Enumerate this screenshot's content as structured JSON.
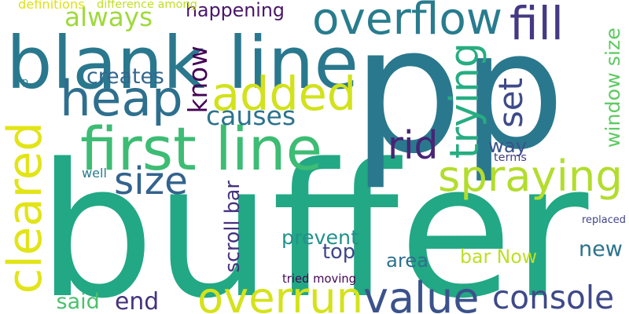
{
  "words": [
    {
      "text": "buffer",
      "color": "#22a884",
      "orientation": "horizontal"
    },
    {
      "text": "p",
      "color": "#2a788e",
      "orientation": "horizontal"
    },
    {
      "text": "p",
      "color": "#2a788e",
      "orientation": "horizontal"
    },
    {
      "text": "blank line",
      "color": "#2a788e",
      "orientation": "horizontal"
    },
    {
      "text": "overflow",
      "color": "#287c8e",
      "orientation": "horizontal"
    },
    {
      "text": "heap",
      "color": "#2e6f8e",
      "orientation": "horizontal"
    },
    {
      "text": "added",
      "color": "#d2e21b",
      "orientation": "horizontal"
    },
    {
      "text": "first line",
      "color": "#3dbc74",
      "orientation": "horizontal"
    },
    {
      "text": "cleared",
      "color": "#e2e418",
      "orientation": "vertical"
    },
    {
      "text": "spraying",
      "color": "#b2dd2d",
      "orientation": "horizontal"
    },
    {
      "text": "overrun",
      "color": "#d5e21a",
      "orientation": "horizontal"
    },
    {
      "text": "value",
      "color": "#3b528b",
      "orientation": "horizontal"
    },
    {
      "text": "console",
      "color": "#3e4989",
      "orientation": "horizontal"
    },
    {
      "text": "fill",
      "color": "#443983",
      "orientation": "horizontal"
    },
    {
      "text": "trying",
      "color": "#26ad81",
      "orientation": "vertical"
    },
    {
      "text": "set",
      "color": "#3e4a89",
      "orientation": "vertical"
    },
    {
      "text": "rid",
      "color": "#482475",
      "orientation": "horizontal"
    },
    {
      "text": "size",
      "color": "#33638d",
      "orientation": "horizontal"
    },
    {
      "text": "always",
      "color": "#9fda3a",
      "orientation": "horizontal"
    },
    {
      "text": "know",
      "color": "#440154",
      "orientation": "vertical"
    },
    {
      "text": "causes",
      "color": "#2c738e",
      "orientation": "horizontal"
    },
    {
      "text": "creates",
      "color": "#31688e",
      "orientation": "horizontal"
    },
    {
      "text": "happening",
      "color": "#481668",
      "orientation": "horizontal"
    },
    {
      "text": "way",
      "color": "#3b528b",
      "orientation": "horizontal"
    },
    {
      "text": "window size",
      "color": "#5ec962",
      "orientation": "vertical"
    },
    {
      "text": "prevent",
      "color": "#21918c",
      "orientation": "horizontal"
    },
    {
      "text": "scroll bar",
      "color": "#46327e",
      "orientation": "vertical"
    },
    {
      "text": "new",
      "color": "#2c728e",
      "orientation": "horizontal"
    },
    {
      "text": "top",
      "color": "#3f4788",
      "orientation": "horizontal"
    },
    {
      "text": "area",
      "color": "#2d708e",
      "orientation": "horizontal"
    },
    {
      "text": "bar Now",
      "color": "#bddf26",
      "orientation": "horizontal"
    },
    {
      "text": "end",
      "color": "#46337e",
      "orientation": "horizontal"
    },
    {
      "text": "said",
      "color": "#4ac16d",
      "orientation": "horizontal"
    },
    {
      "text": "tried moving",
      "color": "#450457",
      "orientation": "horizontal"
    },
    {
      "text": "replaced",
      "color": "#414487",
      "orientation": "horizontal"
    },
    {
      "text": "terms",
      "color": "#433e85",
      "orientation": "horizontal"
    },
    {
      "text": "well",
      "color": "#297b8e",
      "orientation": "horizontal"
    },
    {
      "text": "definitions",
      "color": "#dde318",
      "orientation": "horizontal"
    },
    {
      "text": "difference among",
      "color": "#c2df23",
      "orientation": "horizontal"
    },
    {
      "text": "p",
      "color": "#2a788e",
      "orientation": "horizontal"
    }
  ]
}
